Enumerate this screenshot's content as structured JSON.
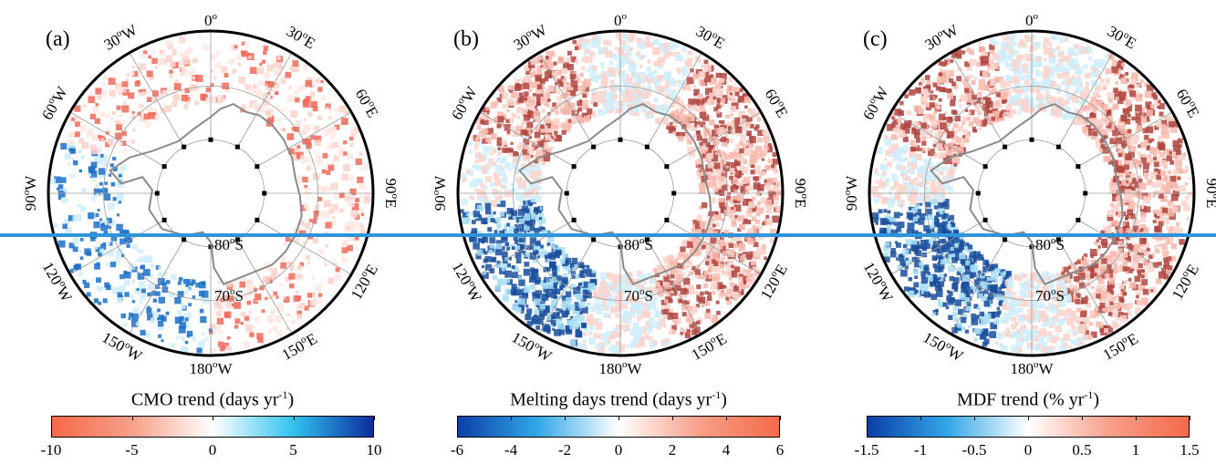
{
  "panels": [
    {
      "label": "(a)",
      "colorbar_title": "CMO trend (days yr",
      "colorbar_title_sup": "-1",
      "colorbar_title_tail": ")",
      "colorbar_ticks": [
        "-10",
        "-5",
        "0",
        "5",
        "10"
      ],
      "colorbar_colors": [
        "#f5694a",
        "#f8a08a",
        "#ffffff",
        "#33c3f0",
        "#0b2d9c"
      ],
      "dominant_colors": {
        "negative": "#f06a5a",
        "positive": "#1b70c8"
      }
    },
    {
      "label": "(b)",
      "colorbar_title": "Melting days trend (days yr",
      "colorbar_title_sup": "-1",
      "colorbar_title_tail": ")",
      "colorbar_ticks": [
        "-6",
        "-4",
        "-2",
        "0",
        "2",
        "4",
        "6"
      ],
      "colorbar_colors": [
        "#0b3fa8",
        "#33a8e8",
        "#ffffff",
        "#f8a08a",
        "#f5694a"
      ],
      "dominant_colors": {
        "negative": "#1b70c8",
        "positive": "#f06a5a"
      }
    },
    {
      "label": "(c)",
      "colorbar_title": "MDF trend (% yr",
      "colorbar_title_sup": "-1",
      "colorbar_title_tail": ")",
      "colorbar_ticks": [
        "-1.5",
        "-1",
        "-0.5",
        "0",
        "0.5",
        "1",
        "1.5"
      ],
      "colorbar_colors": [
        "#0b3fa8",
        "#33a8e8",
        "#ffffff",
        "#f8a08a",
        "#f5694a"
      ],
      "dominant_colors": {
        "negative": "#1b70c8",
        "positive": "#f06a5a"
      }
    }
  ],
  "map_labels": {
    "top": "0",
    "top_sup": "o",
    "bottom": "180",
    "bottom_sup": "o",
    "bottom_suffix": "W",
    "lon_ticks": [
      {
        "deg": 30,
        "dir": "E",
        "angle": 30
      },
      {
        "deg": 60,
        "dir": "E",
        "angle": 60
      },
      {
        "deg": 90,
        "dir": "E",
        "angle": 90
      },
      {
        "deg": 120,
        "dir": "E",
        "angle": 120
      },
      {
        "deg": 150,
        "dir": "E",
        "angle": 150
      },
      {
        "deg": 150,
        "dir": "W",
        "angle": 210
      },
      {
        "deg": 120,
        "dir": "W",
        "angle": 240
      },
      {
        "deg": 90,
        "dir": "W",
        "angle": 270
      },
      {
        "deg": 60,
        "dir": "W",
        "angle": 300
      },
      {
        "deg": 30,
        "dir": "W",
        "angle": 330
      }
    ],
    "lat_80": "80",
    "lat_70": "70",
    "lat_sup": "o",
    "lat_suffix": "S"
  },
  "separator_color": "#2f95d8"
}
